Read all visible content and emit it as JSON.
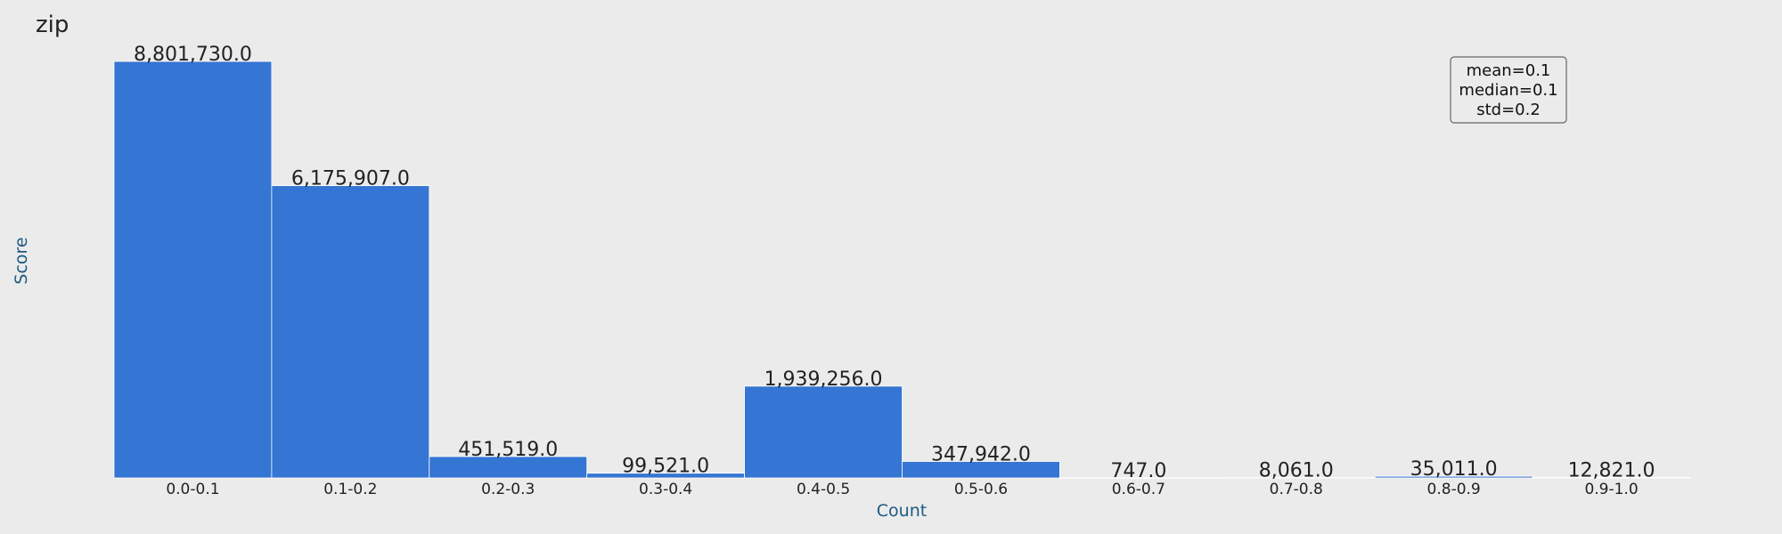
{
  "chart_data": {
    "type": "bar",
    "title": "zip",
    "xlabel": "Count",
    "ylabel": "Score",
    "categories": [
      "0.0-0.1",
      "0.1-0.2",
      "0.2-0.3",
      "0.3-0.4",
      "0.4-0.5",
      "0.5-0.6",
      "0.6-0.7",
      "0.7-0.8",
      "0.8-0.9",
      "0.9-1.0"
    ],
    "values": [
      8801730,
      6175907,
      451519,
      99521,
      1939256,
      347942,
      747,
      8061,
      35011,
      12821
    ],
    "value_labels": [
      "8,801,730.0",
      "6,175,907.0",
      "451,519.0",
      "99,521.0",
      "1,939,256.0",
      "347,942.0",
      "747.0",
      "8,061.0",
      "35,011.0",
      "12,821.0"
    ],
    "ylim": [
      0,
      8801730
    ],
    "grid": false,
    "legend": "none",
    "bar_color": "#3575d3",
    "bar_edge_color": "#ffffff",
    "stats_box": {
      "placement": "top-right",
      "lines": [
        "mean=0.1",
        "median=0.1",
        "std=0.2"
      ]
    }
  }
}
